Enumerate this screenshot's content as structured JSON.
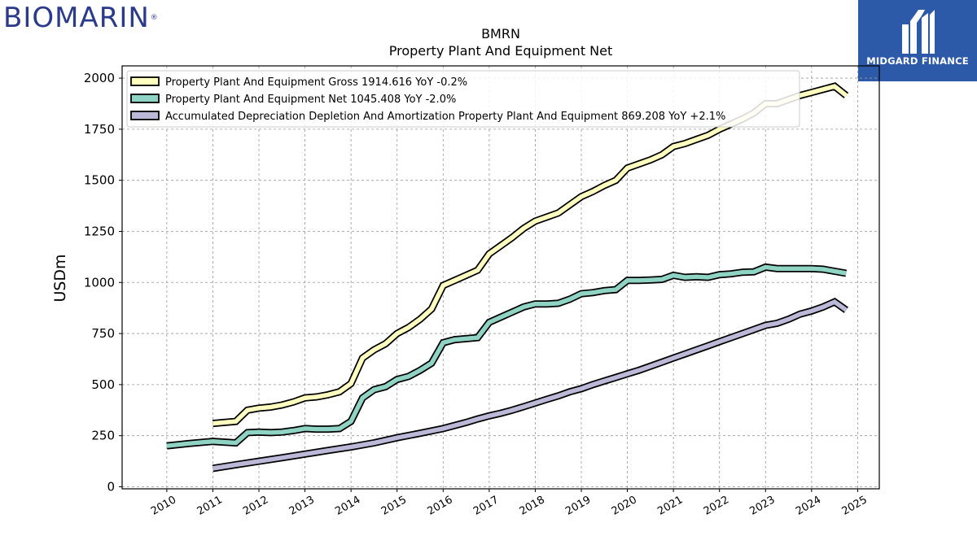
{
  "brand": {
    "logo_text": "BIOMARIN",
    "badge_text": "MIDGARD FINANCE"
  },
  "colors": {
    "gross": "#ffffc0",
    "net": "#8ed3c3",
    "accum": "#bcb8d8",
    "outline": "#000000",
    "brand_blue": "#2b3a8a",
    "badge_bg": "#2c5aa8"
  },
  "chart_data": {
    "type": "line",
    "title": "BMRN",
    "subtitle": "Property Plant And Equipment Net",
    "xlabel": "",
    "ylabel": "USDm",
    "xlim": [
      2009.03,
      2025.47
    ],
    "ylim": [
      -10,
      2060
    ],
    "x_ticks": [
      2010,
      2011,
      2012,
      2013,
      2014,
      2015,
      2016,
      2017,
      2018,
      2019,
      2020,
      2021,
      2022,
      2023,
      2024,
      2025
    ],
    "y_ticks": [
      0,
      250,
      500,
      750,
      1000,
      1250,
      1500,
      1750,
      2000
    ],
    "grid": true,
    "legend_position": "top-left",
    "series": [
      {
        "key": "gross",
        "name": "Property Plant And Equipment Gross  1914.616 YoY -0.2%",
        "x": [
          2011.0,
          2011.5,
          2011.75,
          2012.0,
          2012.25,
          2012.5,
          2012.75,
          2013.0,
          2013.25,
          2013.5,
          2013.75,
          2014.0,
          2014.25,
          2014.5,
          2014.75,
          2015.0,
          2015.25,
          2015.5,
          2015.75,
          2016.0,
          2016.25,
          2016.5,
          2016.75,
          2017.0,
          2017.25,
          2017.5,
          2017.75,
          2018.0,
          2018.25,
          2018.5,
          2018.75,
          2019.0,
          2019.25,
          2019.5,
          2019.75,
          2020.0,
          2020.25,
          2020.5,
          2020.75,
          2021.0,
          2021.25,
          2021.5,
          2021.75,
          2022.0,
          2022.25,
          2022.5,
          2022.75,
          2023.0,
          2023.25,
          2023.5,
          2023.75,
          2024.0,
          2024.25,
          2024.5,
          2024.75
        ],
        "values": [
          310,
          320,
          375,
          385,
          390,
          400,
          415,
          435,
          440,
          450,
          465,
          505,
          630,
          670,
          700,
          750,
          780,
          820,
          870,
          985,
          1010,
          1035,
          1060,
          1140,
          1180,
          1220,
          1265,
          1300,
          1320,
          1340,
          1380,
          1420,
          1445,
          1475,
          1500,
          1560,
          1580,
          1600,
          1625,
          1665,
          1680,
          1700,
          1720,
          1750,
          1775,
          1800,
          1830,
          1875,
          1875,
          1895,
          1915,
          1930,
          1945,
          1960,
          1915
        ]
      },
      {
        "key": "net",
        "name": "Property Plant And Equipment Net  1045.408 YoY -2.0%",
        "x": [
          2010.0,
          2010.5,
          2011.0,
          2011.5,
          2011.75,
          2012.0,
          2012.25,
          2012.5,
          2012.75,
          2013.0,
          2013.25,
          2013.5,
          2013.75,
          2014.0,
          2014.25,
          2014.5,
          2014.75,
          2015.0,
          2015.25,
          2015.5,
          2015.75,
          2016.0,
          2016.25,
          2016.5,
          2016.75,
          2017.0,
          2017.25,
          2017.5,
          2017.75,
          2018.0,
          2018.25,
          2018.5,
          2018.75,
          2019.0,
          2019.25,
          2019.5,
          2019.75,
          2020.0,
          2020.25,
          2020.5,
          2020.75,
          2021.0,
          2021.25,
          2021.5,
          2021.75,
          2022.0,
          2022.25,
          2022.5,
          2022.75,
          2023.0,
          2023.25,
          2023.5,
          2023.75,
          2024.0,
          2024.25,
          2024.5,
          2024.75
        ],
        "values": [
          200,
          212,
          222,
          215,
          265,
          268,
          265,
          268,
          275,
          285,
          282,
          282,
          285,
          320,
          435,
          475,
          490,
          525,
          540,
          570,
          605,
          705,
          720,
          725,
          730,
          805,
          830,
          855,
          880,
          895,
          895,
          898,
          918,
          945,
          950,
          960,
          965,
          1010,
          1010,
          1012,
          1015,
          1035,
          1025,
          1028,
          1025,
          1038,
          1042,
          1050,
          1052,
          1075,
          1068,
          1068,
          1068,
          1068,
          1065,
          1055,
          1045
        ]
      },
      {
        "key": "accum",
        "name": "Accumulated Depreciation Depletion And Amortization Property Plant And Equipment  869.208 YoY +2.1%",
        "x": [
          2011.0,
          2011.5,
          2012.0,
          2012.5,
          2013.0,
          2013.5,
          2014.0,
          2014.5,
          2015.0,
          2015.5,
          2016.0,
          2016.5,
          2016.75,
          2017.0,
          2017.25,
          2017.5,
          2017.75,
          2018.0,
          2018.25,
          2018.5,
          2018.75,
          2019.0,
          2019.25,
          2019.5,
          2019.75,
          2020.0,
          2020.25,
          2020.5,
          2020.75,
          2021.0,
          2021.25,
          2021.5,
          2021.75,
          2022.0,
          2022.25,
          2022.5,
          2022.75,
          2023.0,
          2023.25,
          2023.5,
          2023.75,
          2024.0,
          2024.25,
          2024.5,
          2024.75
        ],
        "values": [
          90,
          108,
          125,
          142,
          160,
          178,
          195,
          215,
          240,
          262,
          285,
          315,
          332,
          347,
          360,
          375,
          392,
          410,
          428,
          445,
          465,
          480,
          500,
          518,
          535,
          553,
          570,
          590,
          610,
          630,
          650,
          670,
          690,
          710,
          730,
          750,
          770,
          790,
          800,
          820,
          845,
          860,
          880,
          905,
          865
        ]
      }
    ]
  }
}
